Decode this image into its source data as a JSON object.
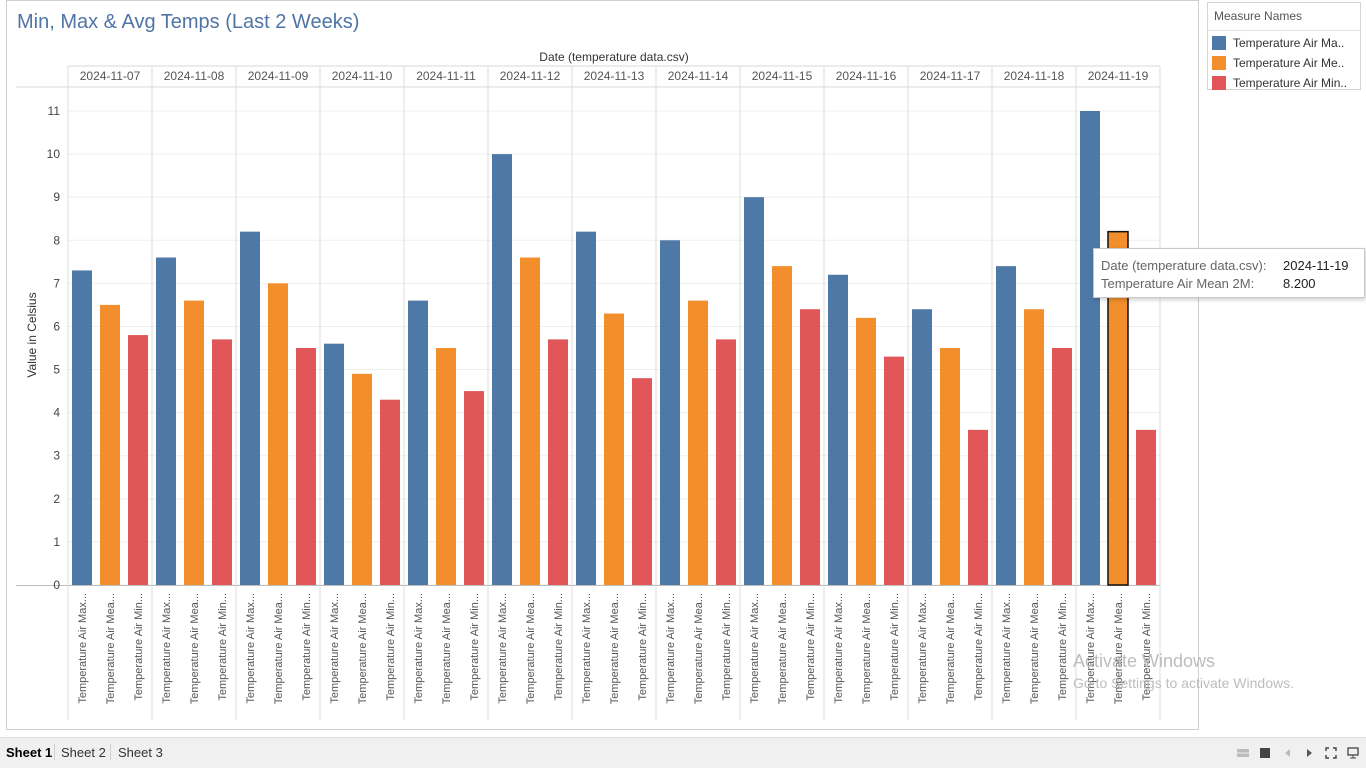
{
  "title": "Min, Max & Avg Temps (Last 2 Weeks)",
  "chart_data": {
    "type": "bar",
    "title": "Min, Max & Avg Temps (Last 2 Weeks)",
    "column_header": "Date (temperature data.csv)",
    "ylabel": "Value in Celsius",
    "ylim": [
      0,
      11
    ],
    "yticks": [
      0,
      1,
      2,
      3,
      4,
      5,
      6,
      7,
      8,
      9,
      10,
      11
    ],
    "categories": [
      "2024-11-07",
      "2024-11-08",
      "2024-11-09",
      "2024-11-10",
      "2024-11-11",
      "2024-11-12",
      "2024-11-13",
      "2024-11-14",
      "2024-11-15",
      "2024-11-16",
      "2024-11-17",
      "2024-11-18",
      "2024-11-19"
    ],
    "series": [
      {
        "name": "Temperature Air Max",
        "axis_label": "Temperature Air Max...",
        "color": "#4e79a7",
        "values": [
          7.3,
          7.6,
          8.2,
          5.6,
          6.6,
          10.0,
          8.2,
          8.0,
          9.0,
          7.2,
          6.4,
          7.4,
          11.0
        ]
      },
      {
        "name": "Temperature Air Mean 2M",
        "axis_label": "Temperature Air Mea...",
        "color": "#f28e2b",
        "values": [
          6.5,
          6.6,
          7.0,
          4.9,
          5.5,
          7.6,
          6.3,
          6.6,
          7.4,
          6.2,
          5.5,
          6.4,
          8.2
        ]
      },
      {
        "name": "Temperature Air Min",
        "axis_label": "Temperature Air Min...",
        "color": "#e15759",
        "values": [
          5.8,
          5.7,
          5.5,
          4.3,
          4.5,
          5.7,
          4.8,
          5.7,
          6.4,
          5.3,
          3.6,
          5.5,
          3.6
        ]
      }
    ],
    "highlighted": {
      "category_index": 12,
      "series_index": 1
    },
    "grid": true,
    "legend_position": "right"
  },
  "legend": {
    "title": "Measure Names",
    "items": [
      {
        "label": "Temperature Air Ma..",
        "color": "#4e79a7"
      },
      {
        "label": "Temperature Air Me..",
        "color": "#f28e2b"
      },
      {
        "label": "Temperature Air Min..",
        "color": "#e15759"
      }
    ]
  },
  "tooltip": {
    "row1_key": "Date (temperature data.csv):",
    "row1_value": "2024-11-19",
    "row2_key": "Temperature Air Mean 2M:",
    "row2_value": "8.200"
  },
  "watermark": {
    "line1": "Activate Windows",
    "line2": "Go to Settings to activate Windows."
  },
  "tabs": [
    {
      "label": "Sheet 1",
      "active": true
    },
    {
      "label": "Sheet 2",
      "active": false
    },
    {
      "label": "Sheet 3",
      "active": false
    }
  ],
  "controls": [
    {
      "icon": "grid-view-icon"
    },
    {
      "icon": "filmstrip-view-icon"
    },
    {
      "icon": "previous-icon"
    },
    {
      "icon": "next-icon"
    },
    {
      "icon": "fit-screen-icon"
    },
    {
      "icon": "presentation-icon"
    }
  ]
}
